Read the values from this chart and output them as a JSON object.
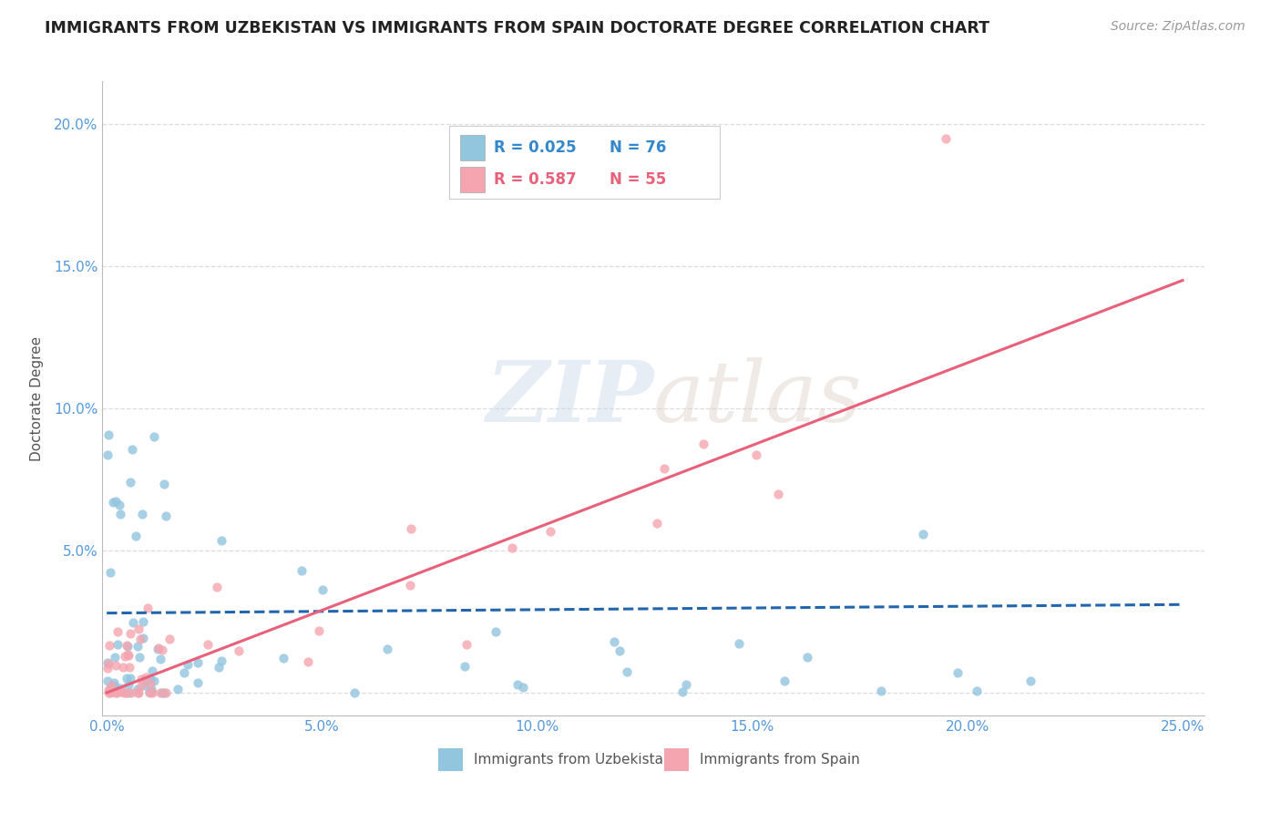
{
  "title": "IMMIGRANTS FROM UZBEKISTAN VS IMMIGRANTS FROM SPAIN DOCTORATE DEGREE CORRELATION CHART",
  "source_text": "Source: ZipAtlas.com",
  "ylabel": "Doctorate Degree",
  "xlim": [
    -0.001,
    0.255
  ],
  "ylim": [
    -0.008,
    0.215
  ],
  "ytick_positions": [
    0.0,
    0.05,
    0.1,
    0.15,
    0.2
  ],
  "ytick_labels": [
    "",
    "5.0%",
    "10.0%",
    "15.0%",
    "20.0%"
  ],
  "xtick_positions": [
    0.0,
    0.05,
    0.1,
    0.15,
    0.2,
    0.25
  ],
  "xtick_labels": [
    "0.0%",
    "5.0%",
    "10.0%",
    "15.0%",
    "20.0%",
    "25.0%"
  ],
  "legend_r1": "R = 0.025",
  "legend_n1": "N = 76",
  "legend_r2": "R = 0.587",
  "legend_n2": "N = 55",
  "color_uzbekistan": "#92C5DE",
  "color_spain": "#F4A5B0",
  "trendline_uzbekistan_color": "#2166AC",
  "trendline_spain_color": "#E8607A",
  "watermark_color": "#C8D8E8",
  "background_color": "#FFFFFF",
  "grid_color": "#DDDDDD",
  "legend_label1": "Immigrants from Uzbekistan",
  "legend_label2": "Immigrants from Spain",
  "uz_trendline": [
    0.028,
    0.031
  ],
  "sp_trendline_x": [
    0.0,
    0.25
  ],
  "sp_trendline_y": [
    0.0,
    0.145
  ]
}
